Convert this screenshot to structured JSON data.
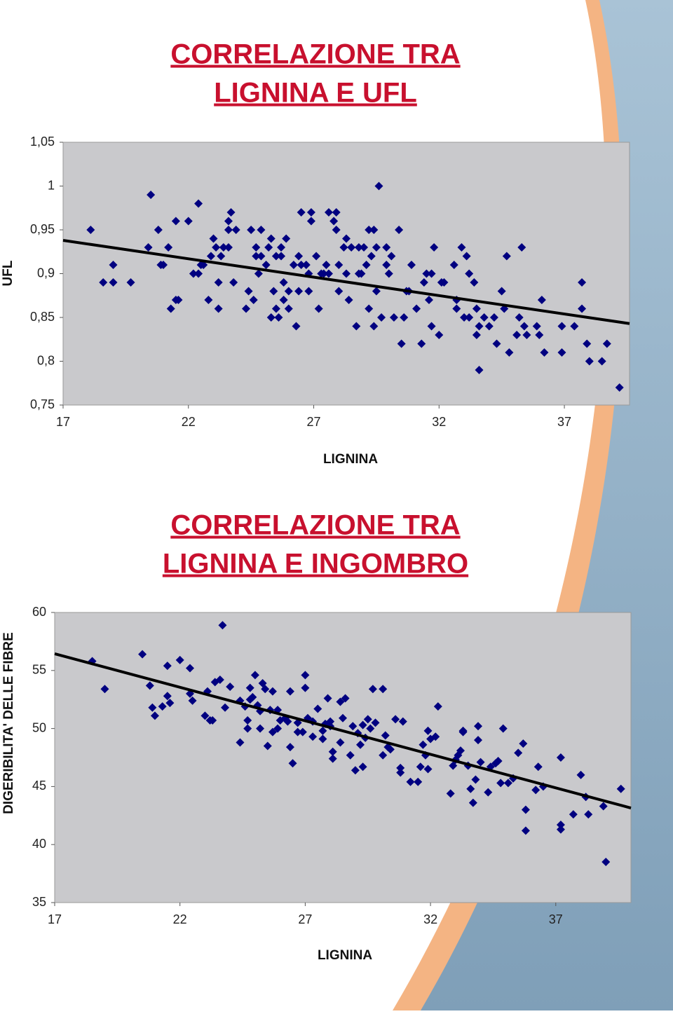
{
  "chart_data": [
    {
      "type": "scatter",
      "title": [
        "CORRELAZIONE TRA",
        "LIGNINA E UFL"
      ],
      "xlabel": "LIGNINA",
      "ylabel": "UFL",
      "color": "#000080",
      "xlim": [
        17,
        39.6
      ],
      "ylim": [
        0.75,
        1.05
      ],
      "xticks": [
        17,
        22,
        27,
        32,
        37
      ],
      "yticks": [
        {
          "value": 0.75,
          "label": "0,75"
        },
        {
          "value": 0.8,
          "label": "0,8"
        },
        {
          "value": 0.85,
          "label": "0,85"
        },
        {
          "value": 0.9,
          "label": "0,9"
        },
        {
          "value": 0.95,
          "label": "0,95"
        },
        1,
        {
          "value": 1.05,
          "label": "1,05"
        }
      ],
      "x": [
        18.1,
        18.6,
        19.0,
        19.0,
        19.7,
        20.4,
        20.5,
        20.8,
        20.9,
        21.0,
        21.2,
        21.3,
        21.5,
        21.5,
        21.6,
        22.0,
        22.2,
        22.4,
        22.4,
        22.5,
        22.6,
        22.8,
        22.9,
        23.0,
        23.1,
        23.2,
        23.2,
        23.3,
        23.4,
        23.6,
        23.6,
        23.6,
        23.7,
        23.8,
        23.9,
        24.3,
        24.4,
        24.5,
        24.6,
        24.7,
        24.7,
        24.8,
        24.9,
        24.9,
        25.1,
        25.2,
        25.3,
        25.3,
        25.4,
        25.5,
        25.5,
        25.6,
        25.7,
        25.7,
        25.8,
        25.8,
        25.9,
        26.0,
        26.0,
        26.2,
        26.3,
        26.4,
        26.4,
        26.5,
        26.5,
        26.7,
        26.8,
        26.8,
        26.9,
        26.9,
        27.1,
        27.2,
        27.3,
        27.4,
        27.5,
        27.6,
        27.6,
        27.8,
        27.9,
        27.9,
        28.0,
        28.0,
        28.2,
        28.3,
        28.3,
        28.4,
        28.5,
        28.7,
        28.8,
        28.8,
        28.9,
        29.0,
        29.1,
        29.2,
        29.2,
        29.3,
        29.4,
        29.4,
        29.5,
        29.5,
        29.6,
        29.7,
        29.9,
        29.9,
        30.0,
        30.1,
        30.2,
        30.4,
        30.5,
        30.6,
        30.7,
        30.8,
        30.9,
        31.1,
        31.3,
        31.4,
        31.5,
        31.6,
        31.7,
        31.7,
        31.8,
        32.0,
        32.1,
        32.2,
        32.6,
        32.7,
        32.7,
        32.9,
        33.0,
        33.1,
        33.2,
        33.2,
        33.4,
        33.5,
        33.5,
        33.6,
        33.6,
        33.8,
        34.0,
        34.2,
        34.3,
        34.5,
        34.6,
        34.7,
        34.8,
        35.1,
        35.2,
        35.3,
        35.4,
        35.5,
        35.9,
        36.0,
        36.1,
        36.2,
        36.9,
        36.9,
        37.4,
        37.7,
        37.7,
        37.9,
        38.0,
        38.5,
        38.7,
        39.2
      ],
      "values": [
        0.95,
        0.89,
        0.91,
        0.89,
        0.89,
        0.93,
        0.99,
        0.95,
        0.91,
        0.91,
        0.93,
        0.86,
        0.87,
        0.96,
        0.87,
        0.96,
        0.9,
        0.98,
        0.9,
        0.91,
        0.91,
        0.87,
        0.92,
        0.94,
        0.93,
        0.89,
        0.86,
        0.92,
        0.93,
        0.95,
        0.93,
        0.96,
        0.97,
        0.89,
        0.95,
        0.86,
        0.88,
        0.95,
        0.87,
        0.93,
        0.92,
        0.9,
        0.95,
        0.92,
        0.91,
        0.93,
        0.85,
        0.94,
        0.88,
        0.86,
        0.92,
        0.85,
        0.93,
        0.92,
        0.89,
        0.87,
        0.94,
        0.86,
        0.88,
        0.91,
        0.84,
        0.88,
        0.92,
        0.97,
        0.91,
        0.91,
        0.88,
        0.9,
        0.97,
        0.96,
        0.92,
        0.86,
        0.9,
        0.9,
        0.91,
        0.9,
        0.97,
        0.96,
        0.95,
        0.97,
        0.88,
        0.91,
        0.93,
        0.94,
        0.9,
        0.87,
        0.93,
        0.84,
        0.9,
        0.93,
        0.9,
        0.93,
        0.91,
        0.86,
        0.95,
        0.92,
        0.84,
        0.95,
        0.88,
        0.93,
        1.0,
        0.85,
        0.93,
        0.91,
        0.9,
        0.92,
        0.85,
        0.95,
        0.82,
        0.85,
        0.88,
        0.88,
        0.91,
        0.86,
        0.82,
        0.89,
        0.9,
        0.87,
        0.84,
        0.9,
        0.93,
        0.83,
        0.89,
        0.89,
        0.91,
        0.86,
        0.87,
        0.93,
        0.85,
        0.92,
        0.9,
        0.85,
        0.89,
        0.86,
        0.83,
        0.79,
        0.84,
        0.85,
        0.84,
        0.85,
        0.82,
        0.88,
        0.86,
        0.92,
        0.81,
        0.83,
        0.85,
        0.93,
        0.84,
        0.83,
        0.84,
        0.83,
        0.87,
        0.81,
        0.84,
        0.81,
        0.84,
        0.89,
        0.86,
        0.82,
        0.8,
        0.8,
        0.82,
        0.77
      ],
      "trendline": {
        "x": [
          17,
          39.6
        ],
        "values": [
          0.938,
          0.843
        ]
      }
    },
    {
      "type": "scatter",
      "title": [
        "CORRELAZIONE TRA",
        "LIGNINA E INGOMBRO"
      ],
      "xlabel": "LIGNINA",
      "ylabel": "DIGERIBILITA' DELLE FIBRE",
      "color": "#000080",
      "xlim": [
        17,
        40
      ],
      "ylim": [
        35,
        60
      ],
      "xticks": [
        17,
        22,
        27,
        32,
        37
      ],
      "yticks": [
        35,
        40,
        45,
        50,
        55,
        60
      ],
      "x": [
        18.5,
        19.0,
        20.5,
        20.8,
        20.9,
        21.0,
        21.3,
        21.5,
        21.6,
        21.5,
        22.0,
        22.4,
        22.4,
        22.5,
        23.0,
        23.1,
        23.2,
        23.3,
        23.4,
        23.6,
        23.7,
        23.8,
        24.0,
        24.4,
        24.4,
        24.6,
        24.7,
        24.7,
        24.8,
        24.8,
        24.9,
        25.0,
        25.1,
        25.2,
        25.2,
        25.3,
        25.4,
        25.5,
        25.6,
        25.7,
        25.7,
        25.9,
        25.9,
        26.0,
        26.2,
        26.3,
        26.4,
        26.4,
        26.5,
        26.7,
        26.7,
        26.9,
        27.0,
        27.0,
        27.1,
        27.3,
        27.3,
        27.5,
        27.7,
        27.7,
        27.8,
        27.9,
        28.0,
        28.0,
        28.1,
        28.1,
        28.4,
        28.4,
        28.5,
        28.6,
        28.8,
        28.9,
        29.0,
        29.1,
        29.2,
        29.3,
        29.3,
        29.4,
        29.5,
        29.6,
        29.7,
        29.8,
        30.1,
        30.1,
        30.2,
        30.3,
        30.4,
        30.6,
        30.8,
        30.8,
        30.9,
        31.2,
        31.5,
        31.6,
        31.7,
        31.8,
        31.9,
        31.9,
        32.0,
        32.2,
        32.3,
        32.8,
        32.9,
        33.0,
        33.1,
        33.2,
        33.3,
        33.3,
        33.5,
        33.6,
        33.7,
        33.8,
        33.9,
        33.9,
        34.0,
        34.3,
        34.4,
        34.6,
        34.7,
        34.8,
        34.9,
        35.1,
        35.3,
        35.5,
        35.7,
        35.8,
        35.8,
        36.2,
        36.3,
        36.5,
        37.2,
        37.2,
        37.2,
        37.7,
        38.0,
        38.2,
        38.3,
        38.9,
        39.0,
        39.6
      ],
      "values": [
        55.8,
        53.4,
        56.4,
        53.7,
        51.8,
        51.1,
        51.9,
        52.8,
        52.2,
        55.4,
        55.9,
        55.2,
        53.0,
        52.4,
        51.1,
        53.2,
        50.7,
        50.7,
        54.0,
        54.2,
        58.9,
        51.8,
        53.6,
        52.4,
        48.8,
        51.9,
        50.7,
        50.0,
        52.5,
        53.5,
        52.7,
        54.6,
        52.0,
        50.0,
        51.5,
        53.9,
        53.4,
        48.5,
        51.6,
        49.7,
        53.2,
        50.0,
        51.6,
        50.7,
        50.9,
        50.6,
        48.4,
        53.2,
        47.0,
        49.7,
        50.5,
        49.7,
        54.6,
        53.5,
        50.9,
        50.6,
        49.3,
        51.7,
        49.8,
        49.1,
        50.4,
        52.6,
        50.2,
        50.6,
        47.4,
        48.0,
        48.8,
        52.3,
        50.9,
        52.6,
        47.7,
        50.2,
        46.4,
        49.6,
        48.6,
        50.3,
        46.7,
        49.2,
        50.8,
        50.0,
        53.4,
        50.5,
        53.4,
        47.7,
        49.4,
        48.4,
        48.2,
        50.8,
        46.6,
        46.2,
        50.6,
        45.4,
        45.4,
        46.7,
        48.6,
        47.7,
        49.8,
        46.5,
        49.1,
        49.3,
        51.9,
        44.4,
        46.8,
        47.3,
        47.7,
        48.1,
        49.8,
        49.7,
        46.8,
        44.8,
        43.6,
        45.6,
        50.2,
        49.0,
        47.1,
        44.5,
        46.7,
        47.0,
        47.2,
        45.3,
        50.0,
        45.3,
        45.7,
        47.9,
        48.7,
        43.0,
        41.2,
        44.7,
        46.7,
        45.0,
        47.5,
        41.7,
        41.3,
        42.6,
        46.0,
        44.1,
        42.6,
        43.3,
        38.5,
        44.8
      ],
      "trendline": {
        "x": [
          17,
          40
        ],
        "values": [
          56.44,
          43.15
        ]
      }
    }
  ]
}
